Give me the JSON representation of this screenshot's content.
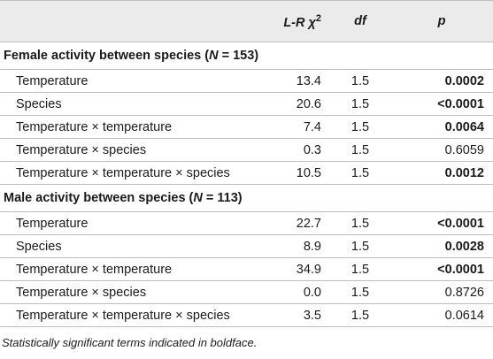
{
  "header": {
    "term": "",
    "chi_prefix": "L-R χ",
    "chi_sup": "2",
    "df": "df",
    "p": "p"
  },
  "groups": [
    {
      "label_prefix": "Female activity between species (",
      "label_n": "N",
      "label_suffix": " = 153)",
      "rows": [
        {
          "term": "Temperature",
          "chi": "13.4",
          "df": "1.5",
          "p": "0.0002",
          "sig": true
        },
        {
          "term": "Species",
          "chi": "20.6",
          "df": "1.5",
          "p": "<0.0001",
          "sig": true
        },
        {
          "term": "Temperature × temperature",
          "chi": "7.4",
          "df": "1.5",
          "p": "0.0064",
          "sig": true
        },
        {
          "term": "Temperature × species",
          "chi": "0.3",
          "df": "1.5",
          "p": "0.6059",
          "sig": false
        },
        {
          "term": "Temperature × temperature × species",
          "chi": "10.5",
          "df": "1.5",
          "p": "0.0012",
          "sig": true
        }
      ]
    },
    {
      "label_prefix": "Male activity between species (",
      "label_n": "N",
      "label_suffix": " = 113)",
      "rows": [
        {
          "term": "Temperature",
          "chi": "22.7",
          "df": "1.5",
          "p": "<0.0001",
          "sig": true
        },
        {
          "term": "Species",
          "chi": "8.9",
          "df": "1.5",
          "p": "0.0028",
          "sig": true
        },
        {
          "term": "Temperature × temperature",
          "chi": "34.9",
          "df": "1.5",
          "p": "<0.0001",
          "sig": true
        },
        {
          "term": "Temperature × species",
          "chi": "0.0",
          "df": "1.5",
          "p": "0.8726",
          "sig": false
        },
        {
          "term": "Temperature × temperature × species",
          "chi": "3.5",
          "df": "1.5",
          "p": "0.0614",
          "sig": false
        }
      ]
    }
  ],
  "footnote": "Statistically significant terms indicated in boldface."
}
